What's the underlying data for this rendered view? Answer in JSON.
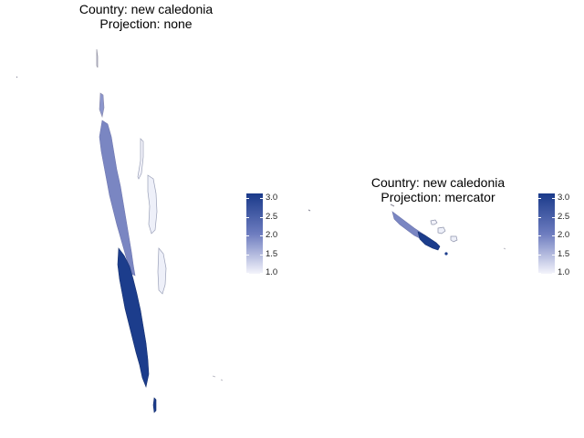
{
  "panels": [
    {
      "title_line1": "Country: new caledonia",
      "title_line2": "Projection: none",
      "legend": {
        "ticks": [
          "3.0",
          "2.5",
          "2.0",
          "1.5",
          "1.0"
        ],
        "min": 1.0,
        "max": 3.0,
        "colors": {
          "high": "#1a3a8a",
          "mid": "#6d7cbf",
          "low": "#f4f4fb"
        }
      }
    },
    {
      "title_line1": "Country: new caledonia",
      "title_line2": "Projection: mercator",
      "legend": {
        "ticks": [
          "3.0",
          "2.5",
          "2.0",
          "1.5",
          "1.0"
        ],
        "min": 1.0,
        "max": 3.0,
        "colors": {
          "high": "#1a3a8a",
          "mid": "#6d7cbf",
          "low": "#f4f4fb"
        }
      }
    }
  ]
}
